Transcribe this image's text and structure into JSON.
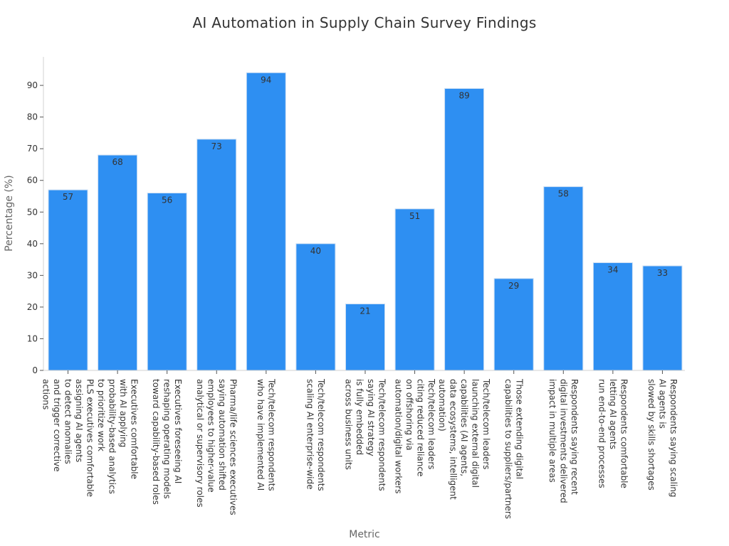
{
  "chart_data": {
    "type": "bar",
    "title": "AI Automation in Supply Chain Survey Findings",
    "xlabel": "Metric",
    "ylabel": "Percentage (%)",
    "ylim": [
      0,
      99
    ],
    "yticks": [
      0,
      10,
      20,
      30,
      40,
      50,
      60,
      70,
      80,
      90
    ],
    "grid": false,
    "bar_color": "#2e8ff2",
    "categories": [
      [
        "PLS executives comfortable",
        "assigning AI agents",
        "to detect anomalies",
        "and trigger corrective",
        "actions"
      ],
      [
        "Executives comfortable",
        "with AI applying",
        "probability-based analytics",
        "to prioritize work"
      ],
      [
        "Executives foreseeing AI",
        "reshaping operating models",
        "toward capability-based roles"
      ],
      [
        "Pharma/life sciences executives",
        "saying automation shifted",
        "employees to higher-value",
        "analytical or supervisory roles"
      ],
      [
        "Tech/telecom respondents",
        "who have implemented AI"
      ],
      [
        "Tech/telecom respondents",
        "scaling AI enterprise-wide"
      ],
      [
        "Tech/telecom respondents",
        "saying AI strategy",
        "is fully embedded",
        "across business units"
      ],
      [
        "Tech/telecom leaders",
        "citing reduced reliance",
        "on offshoring via",
        "automation/digital workers"
      ],
      [
        "Tech/telecom leaders",
        "launching external digital",
        "capabilities (AI agents,",
        "data ecosystems, intelligent",
        "automation)"
      ],
      [
        "Those extending digital",
        "capabilities to suppliers/partners"
      ],
      [
        "Respondents saying recent",
        "digital investments delivered",
        "impact in multiple areas"
      ],
      [
        "Respondents comfortable",
        "letting AI agents",
        "run end-to-end processes"
      ],
      [
        "Respondents saying scaling",
        "AI agents is",
        "slowed by skills shortages"
      ]
    ],
    "values": [
      57,
      68,
      56,
      73,
      94,
      40,
      21,
      51,
      89,
      29,
      58,
      34,
      33
    ]
  }
}
